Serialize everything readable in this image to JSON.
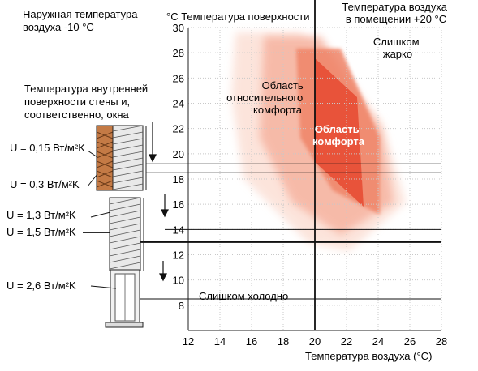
{
  "outside_label": [
    "Наружная температура",
    "воздуха -10 °C"
  ],
  "inner_surface_label": [
    "Температура внутренней",
    "поверхности стены и,",
    "соответственно, окна"
  ],
  "y_axis_title": "°C  Температура поверхности",
  "x_axis_title": "Температура воздуха (°C)",
  "room_air_label": [
    "Температура воздуха",
    "в помещении +20 °C"
  ],
  "too_hot_label": [
    "Слишком",
    "жарко"
  ],
  "too_cold_label": "Слишком холодно",
  "relative_comfort_label": [
    "Область",
    "относительного",
    "комфорта"
  ],
  "comfort_label": [
    "Область",
    "комфорта"
  ],
  "u_values": [
    {
      "label": "U = 0,15 Вт/м²K",
      "surface_temp": 19.2
    },
    {
      "label": "U = 0,3 Вт/м²K",
      "surface_temp": 18.5
    },
    {
      "label": "U = 1,3 Вт/м²K",
      "surface_temp": 14.0
    },
    {
      "label": "U = 1,5 Вт/м²K",
      "surface_temp": 13.0
    },
    {
      "label": "U = 2,6 Вт/м²K",
      "surface_temp": 8.5
    }
  ],
  "axis": {
    "x_min": 12,
    "x_max": 28,
    "y_min": 6,
    "y_max": 30,
    "x_ticks": [
      "12",
      "14",
      "16",
      "18",
      "20",
      "22",
      "24",
      "26",
      "28"
    ],
    "y_ticks": [
      "8",
      "10",
      "12",
      "14",
      "16",
      "18",
      "20",
      "22",
      "24",
      "26",
      "28",
      "30"
    ]
  },
  "room_air_temp": 20,
  "colors": {
    "comfort": "#e8533a",
    "relative": "#f6b3a0",
    "lines": "#111111",
    "grid": "#c8c8c8"
  }
}
